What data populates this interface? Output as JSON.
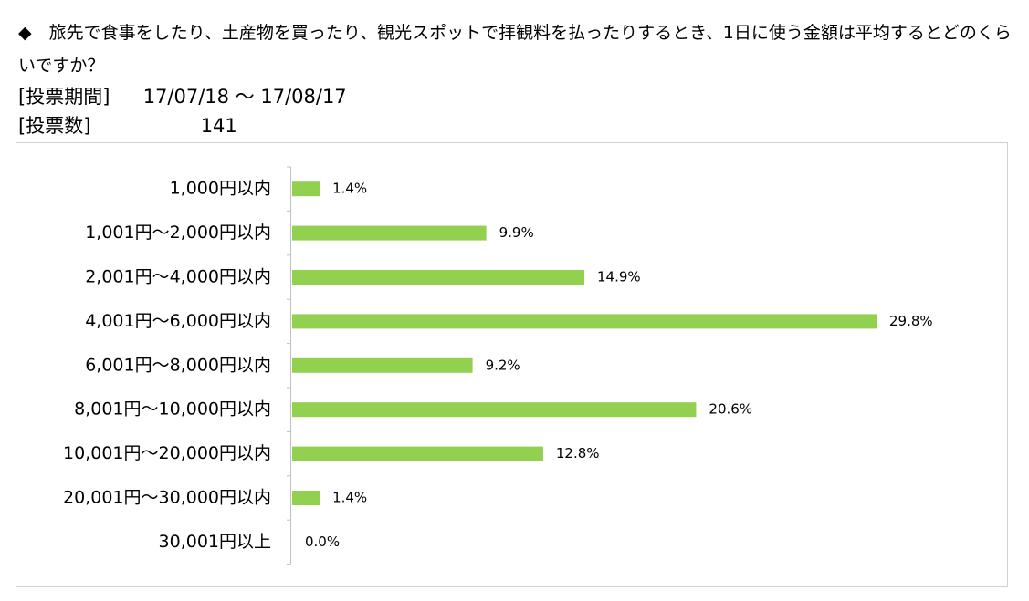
{
  "header": {
    "question": "◆　旅先で食事をしたり、土産物を買ったり、観光スポットで拝観料を払ったりするとき、1日に使う金額は平均するとどのくらいですか？",
    "period_label": "[投票期間]",
    "period_value": "17/07/18 ～ 17/08/17",
    "count_label": "[投票数]",
    "count_value": "141"
  },
  "chart_data": {
    "type": "hbar",
    "color": "#92d050",
    "categories": [
      "1,000円以内",
      "1,001円～2,000円以内",
      "2,001円～4,000円以内",
      "4,001円～6,000円以内",
      "6,001円～8,000円以内",
      "8,001円～10,000円以内",
      "10,001円～20,000円以内",
      "20,001円～30,000円以内",
      "30,001円以上"
    ],
    "values": [
      1.4,
      9.9,
      14.9,
      29.8,
      9.2,
      20.6,
      12.8,
      1.4,
      0.0
    ],
    "value_labels": [
      "1.4%",
      "9.9%",
      "14.9%",
      "29.8%",
      "9.2%",
      "20.6%",
      "12.8%",
      "1.4%",
      "0.0%"
    ]
  }
}
